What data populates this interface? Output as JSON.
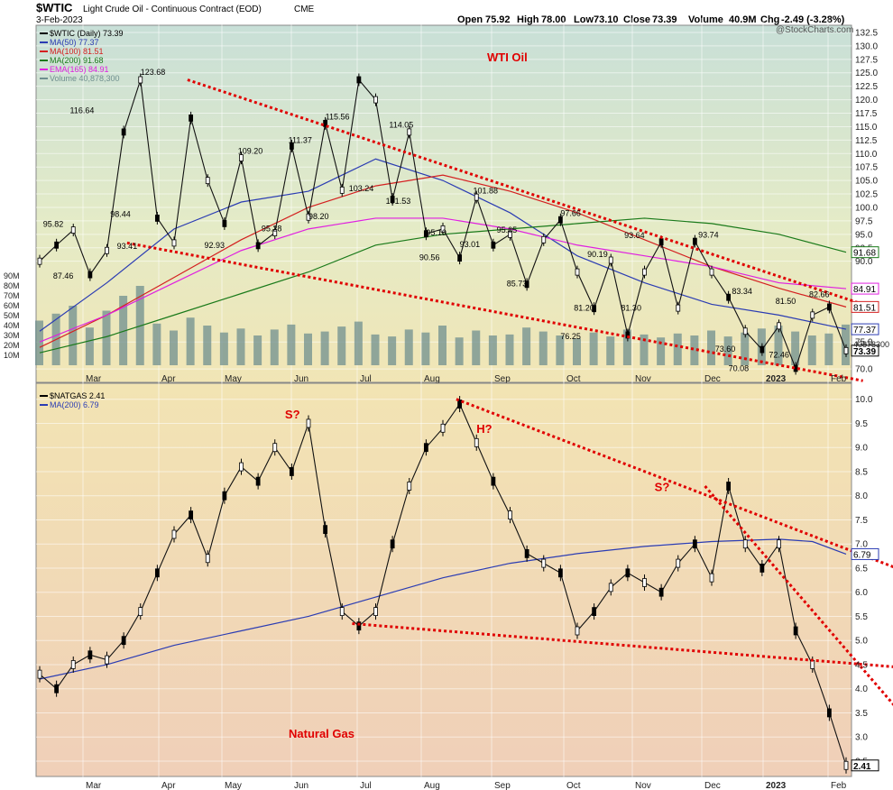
{
  "header": {
    "symbol": "$WTIC",
    "description": "Light Crude Oil - Continuous Contract (EOD)",
    "exchange": "CME",
    "date": "3-Feb-2023",
    "open_label": "Open",
    "open": "75.92",
    "high_label": "High",
    "high": "78.00",
    "low_label": "Low",
    "low": "73.10",
    "close_label": "Close",
    "close": "73.39",
    "volume_label": "Volume",
    "volume": "40.9M",
    "chg_label": "Chg",
    "chg": "-2.49 (-3.28%)",
    "watermark": "@StockCharts.com"
  },
  "colors": {
    "ma50": "#2b3cb3",
    "ma100": "#d42020",
    "ma200": "#1a7a1a",
    "ema165": "#e01fe0",
    "volume": "#6f8f8f",
    "trend": "#e00000",
    "gas_ma": "#2b3cb3",
    "candle": "#000000"
  },
  "chart_data": [
    {
      "type": "line",
      "title": "WTI Oil",
      "legend": [
        {
          "label": "$WTIC (Daily) 73.39",
          "color": "#000000"
        },
        {
          "label": "MA(50) 77.37",
          "color": "#2b3cb3"
        },
        {
          "label": "MA(100) 81.51",
          "color": "#d42020"
        },
        {
          "label": "MA(200) 91.68",
          "color": "#1a7a1a"
        },
        {
          "label": "EMA(165) 84.91",
          "color": "#e01fe0"
        },
        {
          "label": "Volume 40,878,300",
          "color": "#6f8f8f"
        }
      ],
      "legend_position": "top-left",
      "x_ticks": [
        "Mar",
        "Apr",
        "May",
        "Jun",
        "Jul",
        "Aug",
        "Sep",
        "Oct",
        "Nov",
        "Dec",
        "2023",
        "Feb"
      ],
      "y_ticks": [
        "132.5",
        "130.0",
        "127.5",
        "125.0",
        "122.5",
        "120.0",
        "117.5",
        "115.0",
        "112.5",
        "110.0",
        "107.5",
        "105.0",
        "102.5",
        "100.0",
        "97.5",
        "95.0",
        "92.5",
        "90.0",
        "75.0",
        "70.0"
      ],
      "ylim": [
        67.5,
        133.5
      ],
      "volume_ticks": [
        "90M",
        "80M",
        "70M",
        "60M",
        "50M",
        "40M",
        "30M",
        "20M",
        "10M"
      ],
      "volume_lim": [
        0,
        100
      ],
      "series": [
        {
          "name": "$WTIC",
          "x": [
            0,
            5,
            10,
            15,
            20,
            25,
            30,
            35,
            40,
            45,
            50,
            55,
            60,
            65,
            70,
            75,
            80,
            85,
            90,
            95,
            100,
            105,
            110,
            115,
            120,
            125,
            130,
            135,
            140,
            145,
            150,
            155,
            160,
            165,
            170,
            175,
            180,
            185,
            190,
            195,
            200,
            205,
            210,
            215,
            220,
            225,
            230,
            235,
            240
          ],
          "values": [
            90,
            93,
            95.8,
            87.5,
            92,
            114,
            123.7,
            98,
            93.4,
            116.6,
            105,
            97,
            109.2,
            92.9,
            95.3,
            111.4,
            98.2,
            115.6,
            103.2,
            123.7,
            120,
            101.5,
            114,
            95.1,
            96,
            90.6,
            101.9,
            93,
            95,
            85.7,
            94,
            97.7,
            88,
            81.2,
            90.2,
            76.3,
            88,
            93.6,
            81.3,
            93.7,
            88,
            83.3,
            77,
            73.6,
            78,
            70.1,
            80,
            81.5,
            73.39
          ]
        },
        {
          "name": "MA(50)",
          "x": [
            0,
            20,
            40,
            60,
            80,
            100,
            120,
            140,
            160,
            180,
            200,
            220,
            240
          ],
          "values": [
            77,
            86,
            96,
            101,
            103,
            109,
            105,
            99,
            91,
            86,
            82,
            80,
            77.37
          ]
        },
        {
          "name": "MA(100)",
          "x": [
            0,
            20,
            40,
            60,
            80,
            100,
            120,
            140,
            160,
            180,
            200,
            220,
            240
          ],
          "values": [
            74,
            80,
            87,
            94,
            100,
            104,
            106,
            103,
            99,
            94,
            89,
            85,
            81.51
          ]
        },
        {
          "name": "MA(200)",
          "x": [
            0,
            20,
            40,
            60,
            80,
            100,
            120,
            140,
            160,
            180,
            200,
            220,
            240
          ],
          "values": [
            73,
            76,
            80,
            84,
            88,
            93,
            95,
            96,
            97,
            98,
            97,
            95,
            91.68
          ]
        },
        {
          "name": "EMA(165)",
          "x": [
            0,
            20,
            40,
            60,
            80,
            100,
            120,
            140,
            160,
            180,
            200,
            220,
            240
          ],
          "values": [
            75,
            80,
            86,
            92,
            96,
            98,
            98,
            96,
            93,
            91,
            89,
            86,
            84.91
          ]
        }
      ],
      "value_tags": [
        "91.68",
        "84.91",
        "81.51",
        "77.37",
        "73.39"
      ],
      "volume_label_right": "40878300",
      "annotations": [
        "123.68",
        "116.64",
        "115.56",
        "114.05",
        "111.37",
        "109.20",
        "103.24",
        "101.88",
        "101.53",
        "98.44",
        "98.20",
        "97.66",
        "95.82",
        "95.28",
        "95.10",
        "95.05",
        "93.74",
        "93.64",
        "93.41",
        "93.01",
        "92.93",
        "90.56",
        "90.19",
        "87.46",
        "85.73",
        "83.34",
        "82.66",
        "81.50",
        "81.30",
        "81.20",
        "76.25",
        "73.60",
        "72.46",
        "70.08"
      ],
      "trendlines": [
        {
          "from": [
            44,
            123.7
          ],
          "to": [
            245,
            82
          ]
        },
        {
          "from": [
            26,
            93.4
          ],
          "to": [
            245,
            67.8
          ]
        }
      ]
    },
    {
      "type": "line",
      "title": "Natural Gas",
      "legend": [
        {
          "label": "$NATGAS 2.41",
          "color": "#000000"
        },
        {
          "label": "MA(200) 6.79",
          "color": "#2b3cb3"
        }
      ],
      "legend_position": "top-left",
      "x_ticks": [
        "Mar",
        "Apr",
        "May",
        "Jun",
        "Jul",
        "Aug",
        "Sep",
        "Oct",
        "Nov",
        "Dec",
        "2023",
        "Feb"
      ],
      "y_ticks": [
        "10.0",
        "9.5",
        "9.0",
        "8.5",
        "8.0",
        "7.5",
        "7.0",
        "6.5",
        "6.0",
        "5.5",
        "5.0",
        "4.5",
        "4.0",
        "3.5",
        "3.0",
        "2.5"
      ],
      "ylim": [
        2.2,
        10.2
      ],
      "series": [
        {
          "name": "$NATGAS",
          "x": [
            0,
            5,
            10,
            15,
            20,
            25,
            30,
            35,
            40,
            45,
            50,
            55,
            60,
            65,
            70,
            75,
            80,
            85,
            90,
            95,
            100,
            105,
            110,
            115,
            120,
            125,
            130,
            135,
            140,
            145,
            150,
            155,
            160,
            165,
            170,
            175,
            180,
            185,
            190,
            195,
            200,
            205,
            210,
            215,
            220,
            225,
            230,
            235,
            240
          ],
          "values": [
            4.3,
            4.0,
            4.5,
            4.7,
            4.6,
            5.0,
            5.6,
            6.4,
            7.2,
            7.6,
            6.7,
            8.0,
            8.6,
            8.3,
            9.0,
            8.5,
            9.5,
            7.3,
            5.6,
            5.3,
            5.6,
            7.0,
            8.2,
            9.0,
            9.4,
            9.9,
            9.1,
            8.3,
            7.6,
            6.8,
            6.6,
            6.4,
            5.2,
            5.6,
            6.1,
            6.4,
            6.2,
            6.0,
            6.6,
            7.0,
            6.3,
            8.2,
            7.0,
            6.5,
            7.0,
            5.2,
            4.5,
            3.5,
            2.41
          ]
        },
        {
          "name": "MA(200)",
          "x": [
            0,
            20,
            40,
            60,
            80,
            100,
            120,
            140,
            160,
            180,
            200,
            220,
            230,
            240
          ],
          "values": [
            4.2,
            4.5,
            4.9,
            5.2,
            5.5,
            5.9,
            6.3,
            6.6,
            6.8,
            6.95,
            7.05,
            7.1,
            7.05,
            6.79
          ]
        }
      ],
      "value_tags": [
        "6.79",
        "2.41"
      ],
      "annotations": [
        "S?",
        "H?",
        "S?"
      ],
      "trendlines": [
        {
          "from": [
            124,
            10.0
          ],
          "to": [
            255,
            6.5
          ]
        },
        {
          "from": [
            198,
            8.2
          ],
          "to": [
            255,
            3.6
          ]
        },
        {
          "from": [
            93,
            5.35
          ],
          "to": [
            255,
            4.45
          ]
        }
      ]
    }
  ]
}
